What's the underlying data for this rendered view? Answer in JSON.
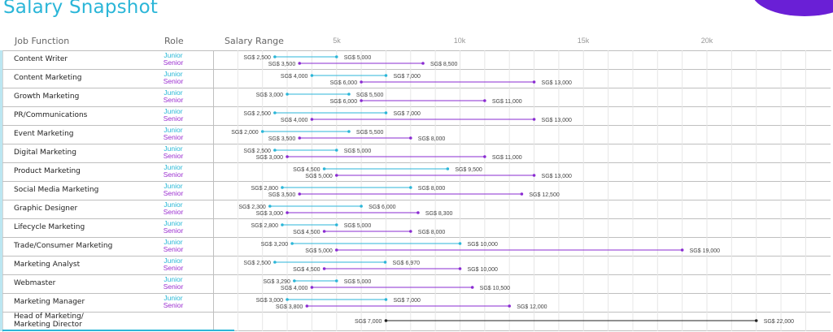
{
  "title": "Salary Snapshot",
  "headers": {
    "job_function": "Job Function",
    "role": "Role",
    "salary_range": "Salary Range"
  },
  "chart_data": {
    "type": "range-dumbbell",
    "x_ticks": [
      "5k",
      "10k",
      "15k",
      "20k"
    ],
    "x_tick_values": [
      5000,
      10000,
      15000,
      20000
    ],
    "xlim": [
      0,
      23500
    ],
    "currency_prefix": "SG$",
    "roles": {
      "junior": "Junior",
      "senior": "Senior"
    },
    "colors": {
      "junior": "#2bb6d8",
      "senior": "#8a2bd2",
      "director": "#222222"
    },
    "rows": [
      {
        "job": "Content Writer",
        "junior": [
          2500,
          5000
        ],
        "junior_labels": [
          "SG$ 2,500",
          "SG$ 5,000"
        ],
        "senior": [
          3500,
          8500
        ],
        "senior_labels": [
          "SG$ 3,500",
          "SG$ 8,500"
        ]
      },
      {
        "job": "Content Marketing",
        "junior": [
          4000,
          7000
        ],
        "junior_labels": [
          "SG$ 4,000",
          "SG$ 7,000"
        ],
        "senior": [
          6000,
          13000
        ],
        "senior_labels": [
          "SG$ 6,000",
          "SG$ 13,000"
        ]
      },
      {
        "job": "Growth Marketing",
        "junior": [
          3000,
          5500
        ],
        "junior_labels": [
          "SG$ 3,000",
          "SG$ 5,500"
        ],
        "senior": [
          6000,
          11000
        ],
        "senior_labels": [
          "SG$ 6,000",
          "SG$ 11,000"
        ]
      },
      {
        "job": "PR/Communications",
        "junior": [
          2500,
          7000
        ],
        "junior_labels": [
          "SG$ 2,500",
          "SG$ 7,000"
        ],
        "senior": [
          4000,
          13000
        ],
        "senior_labels": [
          "SG$ 4,000",
          "SG$ 13,000"
        ]
      },
      {
        "job": "Event Marketing",
        "junior": [
          2000,
          5500
        ],
        "junior_labels": [
          "SG$ 2,000",
          "SG$ 5,500"
        ],
        "senior": [
          3500,
          8000
        ],
        "senior_labels": [
          "SG$ 3,500",
          "SG$ 8,000"
        ]
      },
      {
        "job": "Digital Marketing",
        "junior": [
          2500,
          5000
        ],
        "junior_labels": [
          "SG$ 2,500",
          "SG$ 5,000"
        ],
        "senior": [
          3000,
          11000
        ],
        "senior_labels": [
          "SG$ 3,000",
          "SG$ 11,000"
        ]
      },
      {
        "job": "Product Marketing",
        "junior": [
          4500,
          9500
        ],
        "junior_labels": [
          "SG$ 4,500",
          "SG$ 9,500"
        ],
        "senior": [
          5000,
          13000
        ],
        "senior_labels": [
          "SG$ 5,000",
          "SG$ 13,000"
        ]
      },
      {
        "job": "Social Media Marketing",
        "junior": [
          2800,
          8000
        ],
        "junior_labels": [
          "SG$ 2,800",
          "SG$ 8,000"
        ],
        "senior": [
          3500,
          12500
        ],
        "senior_labels": [
          "SG$ 3,500",
          "SG$ 12,500"
        ]
      },
      {
        "job": "Graphic Designer",
        "junior": [
          2300,
          6000
        ],
        "junior_labels": [
          "SG$ 2,300",
          "SG$ 6,000"
        ],
        "senior": [
          3000,
          8300
        ],
        "senior_labels": [
          "SG$ 3,000",
          "SG$ 8,300"
        ]
      },
      {
        "job": "Lifecycle Marketing",
        "junior": [
          2800,
          5000
        ],
        "junior_labels": [
          "SG$ 2,800",
          "SG$ 5,000"
        ],
        "senior": [
          4500,
          8000
        ],
        "senior_labels": [
          "SG$ 4,500",
          "SG$ 8,000"
        ]
      },
      {
        "job": "Trade/Consumer Marketing",
        "junior": [
          3200,
          10000
        ],
        "junior_labels": [
          "SG$ 3,200",
          "SG$ 10,000"
        ],
        "senior": [
          5000,
          19000
        ],
        "senior_labels": [
          "SG$ 5,000",
          "SG$ 19,000"
        ]
      },
      {
        "job": "Marketing Analyst",
        "junior": [
          2500,
          6970
        ],
        "junior_labels": [
          "SG$ 2,500",
          "SG$ 6,970"
        ],
        "senior": [
          4500,
          10000
        ],
        "senior_labels": [
          "SG$ 4,500",
          "SG$ 10,000"
        ]
      },
      {
        "job": "Webmaster",
        "junior": [
          3290,
          5000
        ],
        "junior_labels": [
          "SG$ 3,290",
          "SG$ 5,000"
        ],
        "senior": [
          4000,
          10500
        ],
        "senior_labels": [
          "SG$ 4,000",
          "SG$ 10,500"
        ]
      },
      {
        "job": "Marketing Manager",
        "junior": [
          3000,
          7000
        ],
        "junior_labels": [
          "SG$ 3,000",
          "SG$ 7,000"
        ],
        "senior": [
          3800,
          12000
        ],
        "senior_labels": [
          "SG$ 3,800",
          "SG$ 12,000"
        ]
      },
      {
        "job": "Head of Marketing/ Marketing Director",
        "job_lines": [
          "Head of Marketing/",
          "Marketing Director"
        ],
        "single": [
          7000,
          22000
        ],
        "single_labels": [
          "SG$ 7,000",
          "SG$ 22,000"
        ]
      }
    ]
  }
}
